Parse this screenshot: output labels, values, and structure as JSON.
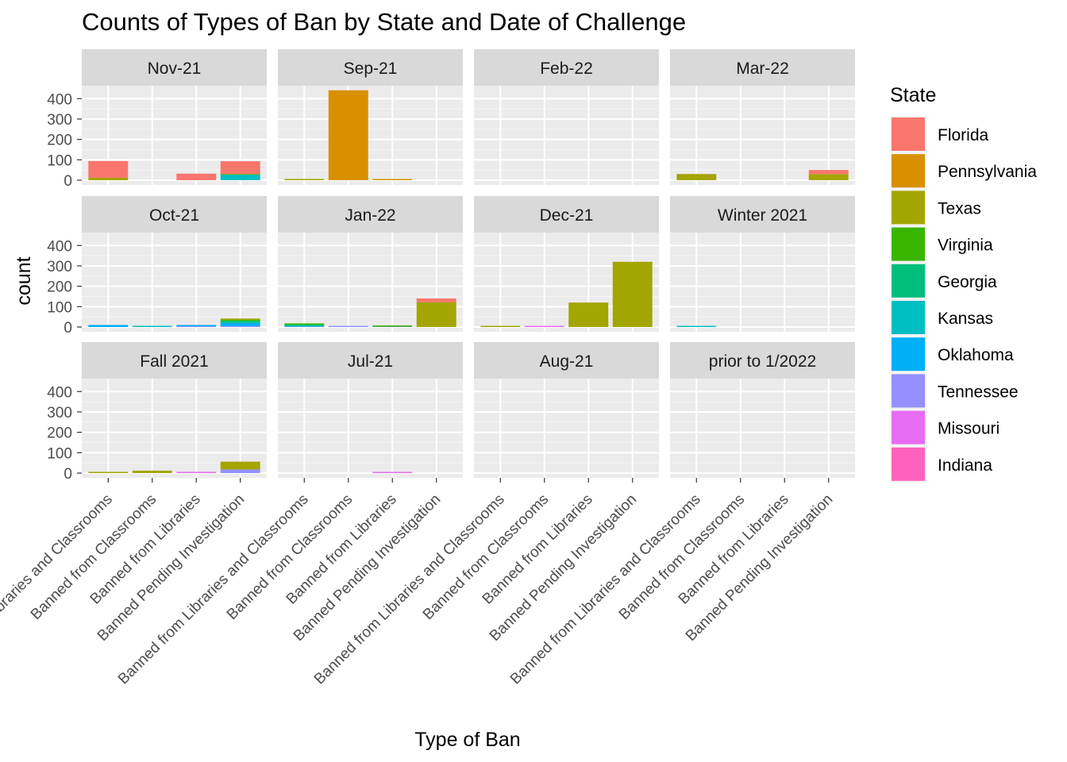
{
  "chart_data": {
    "type": "bar",
    "stacked": true,
    "faceted": true,
    "title": "Counts of Types of Ban by State and Date of Challenge",
    "xlabel": "Type of Ban",
    "ylabel": "count",
    "ylim": [
      0,
      440
    ],
    "y_ticks": [
      0,
      100,
      200,
      300,
      400
    ],
    "grid": true,
    "legend": {
      "title": "State",
      "position": "right"
    },
    "categories": [
      "Banned from Libraries and Classrooms",
      "Banned from Classrooms",
      "Banned from Libraries",
      "Banned Pending Investigation"
    ],
    "x_tick_labels": [
      "Banned from Libraries and Classrooms",
      "Banned from Classrooms",
      "Banned from Libraries",
      "Banned Pending Investigation"
    ],
    "states": [
      {
        "name": "Florida",
        "color": "#F8766D"
      },
      {
        "name": "Pennsylvania",
        "color": "#D89000"
      },
      {
        "name": "Texas",
        "color": "#A3A500"
      },
      {
        "name": "Virginia",
        "color": "#39B600"
      },
      {
        "name": "Georgia",
        "color": "#00BF7D"
      },
      {
        "name": "Kansas",
        "color": "#00BFC4"
      },
      {
        "name": "Oklahoma",
        "color": "#00B0F6"
      },
      {
        "name": "Tennessee",
        "color": "#9590FF"
      },
      {
        "name": "Missouri",
        "color": "#E76BF3"
      },
      {
        "name": "Indiana",
        "color": "#FF62BC"
      }
    ],
    "facets": [
      {
        "label": "Nov-21",
        "bars": [
          {
            "category": 0,
            "segments": {
              "Florida": 82,
              "Texas": 12
            }
          },
          {
            "category": 2,
            "segments": {
              "Florida": 32
            }
          },
          {
            "category": 3,
            "segments": {
              "Florida": 62,
              "Texas": 3,
              "Georgia": 3,
              "Kansas": 25
            }
          }
        ]
      },
      {
        "label": "Sep-21",
        "bars": [
          {
            "category": 0,
            "segments": {
              "Texas": 2
            }
          },
          {
            "category": 1,
            "segments": {
              "Pennsylvania": 441
            }
          },
          {
            "category": 2,
            "segments": {
              "Pennsylvania": 2
            }
          }
        ]
      },
      {
        "label": "Feb-22",
        "bars": []
      },
      {
        "label": "Mar-22",
        "bars": [
          {
            "category": 0,
            "segments": {
              "Texas": 30
            }
          },
          {
            "category": 3,
            "segments": {
              "Florida": 20,
              "Texas": 30
            }
          }
        ]
      },
      {
        "label": "Oct-21",
        "bars": [
          {
            "category": 0,
            "segments": {
              "Oklahoma": 10
            }
          },
          {
            "category": 1,
            "segments": {
              "Kansas": 6
            }
          },
          {
            "category": 2,
            "segments": {
              "Tennessee": 4,
              "Oklahoma": 6
            }
          },
          {
            "category": 3,
            "segments": {
              "Tennessee": 5,
              "Oklahoma": 15,
              "Kansas": 2,
              "Georgia": 8,
              "Virginia": 6,
              "Texas": 3
            }
          }
        ]
      },
      {
        "label": "Jan-22",
        "bars": [
          {
            "category": 0,
            "segments": {
              "Tennessee": 2,
              "Kansas": 5,
              "Georgia": 5,
              "Virginia": 3
            }
          },
          {
            "category": 1,
            "segments": {
              "Tennessee": 2
            }
          },
          {
            "category": 2,
            "segments": {
              "Tennessee": 2,
              "Virginia": 4
            }
          },
          {
            "category": 3,
            "segments": {
              "Texas": 122,
              "Florida": 18
            }
          }
        ]
      },
      {
        "label": "Dec-21",
        "bars": [
          {
            "category": 0,
            "segments": {
              "Texas": 2
            }
          },
          {
            "category": 1,
            "segments": {
              "Missouri": 2
            }
          },
          {
            "category": 2,
            "segments": {
              "Texas": 120
            }
          },
          {
            "category": 3,
            "segments": {
              "Texas": 320
            }
          }
        ]
      },
      {
        "label": "Winter 2021",
        "bars": [
          {
            "category": 0,
            "segments": {
              "Kansas": 2
            }
          }
        ]
      },
      {
        "label": "Fall 2021",
        "bars": [
          {
            "category": 0,
            "segments": {
              "Texas": 2
            }
          },
          {
            "category": 1,
            "segments": {
              "Texas": 12
            }
          },
          {
            "category": 2,
            "segments": {
              "Missouri": 6
            }
          },
          {
            "category": 3,
            "segments": {
              "Tennessee": 18,
              "Texas": 38
            }
          }
        ]
      },
      {
        "label": "Jul-21",
        "bars": [
          {
            "category": 2,
            "segments": {
              "Missouri": 2
            }
          }
        ]
      },
      {
        "label": "Aug-21",
        "bars": []
      },
      {
        "label": "prior to 1/2022",
        "bars": []
      }
    ]
  }
}
